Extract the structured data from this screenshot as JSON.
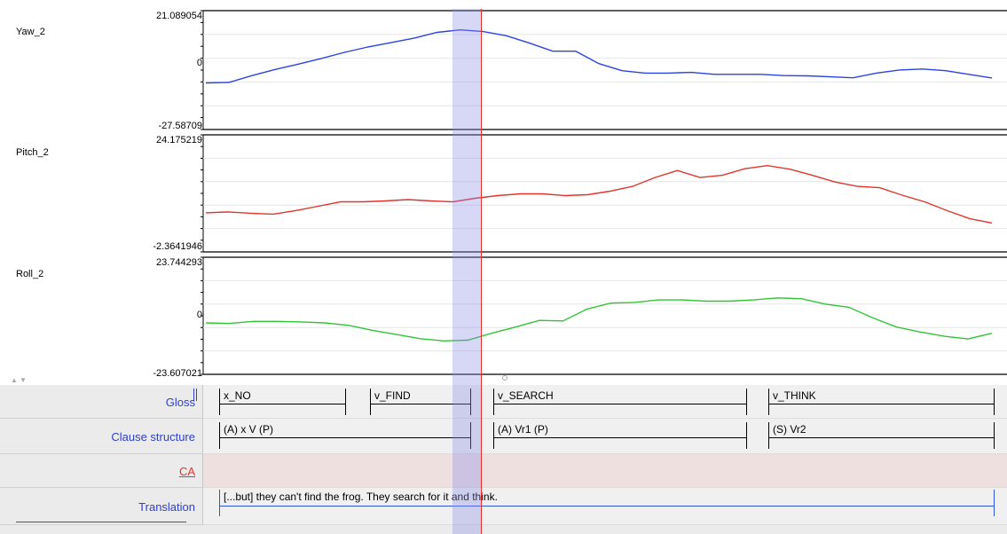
{
  "panels": [
    {
      "id": "yaw",
      "label": "Yaw_2",
      "color": "#2b43e3",
      "max_label": "21.089054",
      "zero_label": "0",
      "min_label": "-27.58709",
      "y_max": 21.089054,
      "y_min": -27.58709,
      "values": [
        -8.5,
        -8.3,
        -5.5,
        -3,
        -0.8,
        1.5,
        4,
        6.2,
        8,
        9.8,
        12.2,
        13.2,
        12.5,
        10.8,
        7.8,
        4.5,
        4.5,
        -0.6,
        -3.5,
        -4.5,
        -4.5,
        -4.2,
        -5,
        -5,
        -5,
        -5.5,
        -5.6,
        -6,
        -6.4,
        -4.5,
        -3.2,
        -2.8,
        -3.5,
        -5,
        -6.5
      ]
    },
    {
      "id": "pitch",
      "label": "Pitch_2",
      "color": "#e0352d",
      "max_label": "24.175219",
      "zero_label": "",
      "min_label": "-2.3641946",
      "y_max": 24.175219,
      "y_min": -2.3641946,
      "values": [
        6.5,
        6.7,
        6.4,
        6.2,
        7,
        8,
        9,
        9,
        9.2,
        9.5,
        9.2,
        9,
        9.8,
        10.4,
        10.8,
        10.8,
        10.4,
        10.6,
        11.4,
        12.5,
        14.5,
        16.1,
        14.5,
        15,
        16.5,
        17.2,
        16.4,
        15,
        13.5,
        12.5,
        12.2,
        10.5,
        9,
        7,
        5.2,
        4.2
      ]
    },
    {
      "id": "roll",
      "label": "Roll_2",
      "color": "#31c535",
      "max_label": "23.744293",
      "zero_label": "0",
      "min_label": "-23.607021",
      "y_max": 23.744293,
      "y_min": -23.607021,
      "values": [
        -2.8,
        -3,
        -2.2,
        -2.2,
        -2.4,
        -2.8,
        -3.8,
        -5.8,
        -7.5,
        -9.2,
        -10.1,
        -9.8,
        -7,
        -4.5,
        -1.8,
        -2,
        2.8,
        5.2,
        5.5,
        6.5,
        6.5,
        6,
        6,
        6.5,
        7.3,
        7,
        4.8,
        3.5,
        -0.8,
        -4.5,
        -6.5,
        -8.2,
        -9.3,
        -7
      ]
    }
  ],
  "tiers": {
    "gloss": {
      "label": "Gloss",
      "annotations": [
        "x_NO",
        "v_FIND",
        "v_SEARCH",
        "v_THINK"
      ]
    },
    "clause": {
      "label": "Clause structure",
      "annotations": [
        "(A) x V (P)",
        "(A) Vr1 (P)",
        "(S) Vr2"
      ]
    },
    "ca": {
      "label": "CA"
    },
    "translation": {
      "label": "Translation",
      "text": "[...but] they can't find the frog. They search for it and think."
    }
  },
  "colors": {
    "selection": "#8c8ce6",
    "cursor": "#e8302a",
    "tier_label": "#2e3fcc",
    "ca_label": "#e0352d",
    "ca_track": "#ede0df"
  }
}
